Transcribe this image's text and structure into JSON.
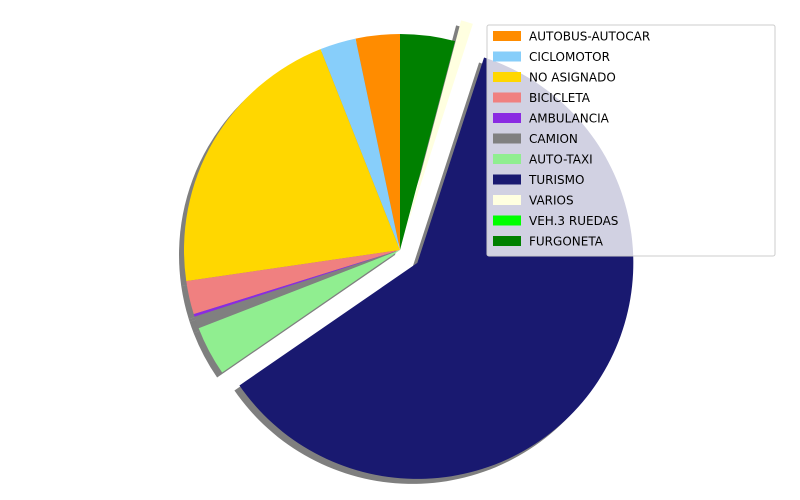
{
  "chart_data": {
    "type": "pie",
    "title": "",
    "shadow": true,
    "start_angle": 90,
    "direction": "counterclockwise",
    "legend_position": "upper right",
    "slices": [
      {
        "label": "AUTOBUS-AUTOCAR",
        "value": 3.3,
        "color": "#FF8C00",
        "explode": 0
      },
      {
        "label": "CICLOMOTOR",
        "value": 2.7,
        "color": "#87CEFA",
        "explode": 0
      },
      {
        "label": "NO ASIGNADO",
        "value": 21.3,
        "color": "#FFD700",
        "explode": 0
      },
      {
        "label": "BICICLETA",
        "value": 2.5,
        "color": "#F08080",
        "explode": 0
      },
      {
        "label": "AMBULANCIA",
        "value": 0.2,
        "color": "#8A2BE2",
        "explode": 0
      },
      {
        "label": "CAMION",
        "value": 0.9,
        "color": "#808080",
        "explode": 0
      },
      {
        "label": "AUTO-TAXI",
        "value": 3.7,
        "color": "#90EE90",
        "explode": 0
      },
      {
        "label": "TURISMO",
        "value": 60.4,
        "color": "#191970",
        "explode": 0.1
      },
      {
        "label": "VARIOS",
        "value": 0.9,
        "color": "#FFFFE0",
        "explode": 0.1
      },
      {
        "label": "VEH.3 RUEDAS",
        "value": 0.0,
        "color": "#00FF00",
        "explode": 0
      },
      {
        "label": "FURGONETA",
        "value": 4.1,
        "color": "#008000",
        "explode": 0
      }
    ]
  }
}
